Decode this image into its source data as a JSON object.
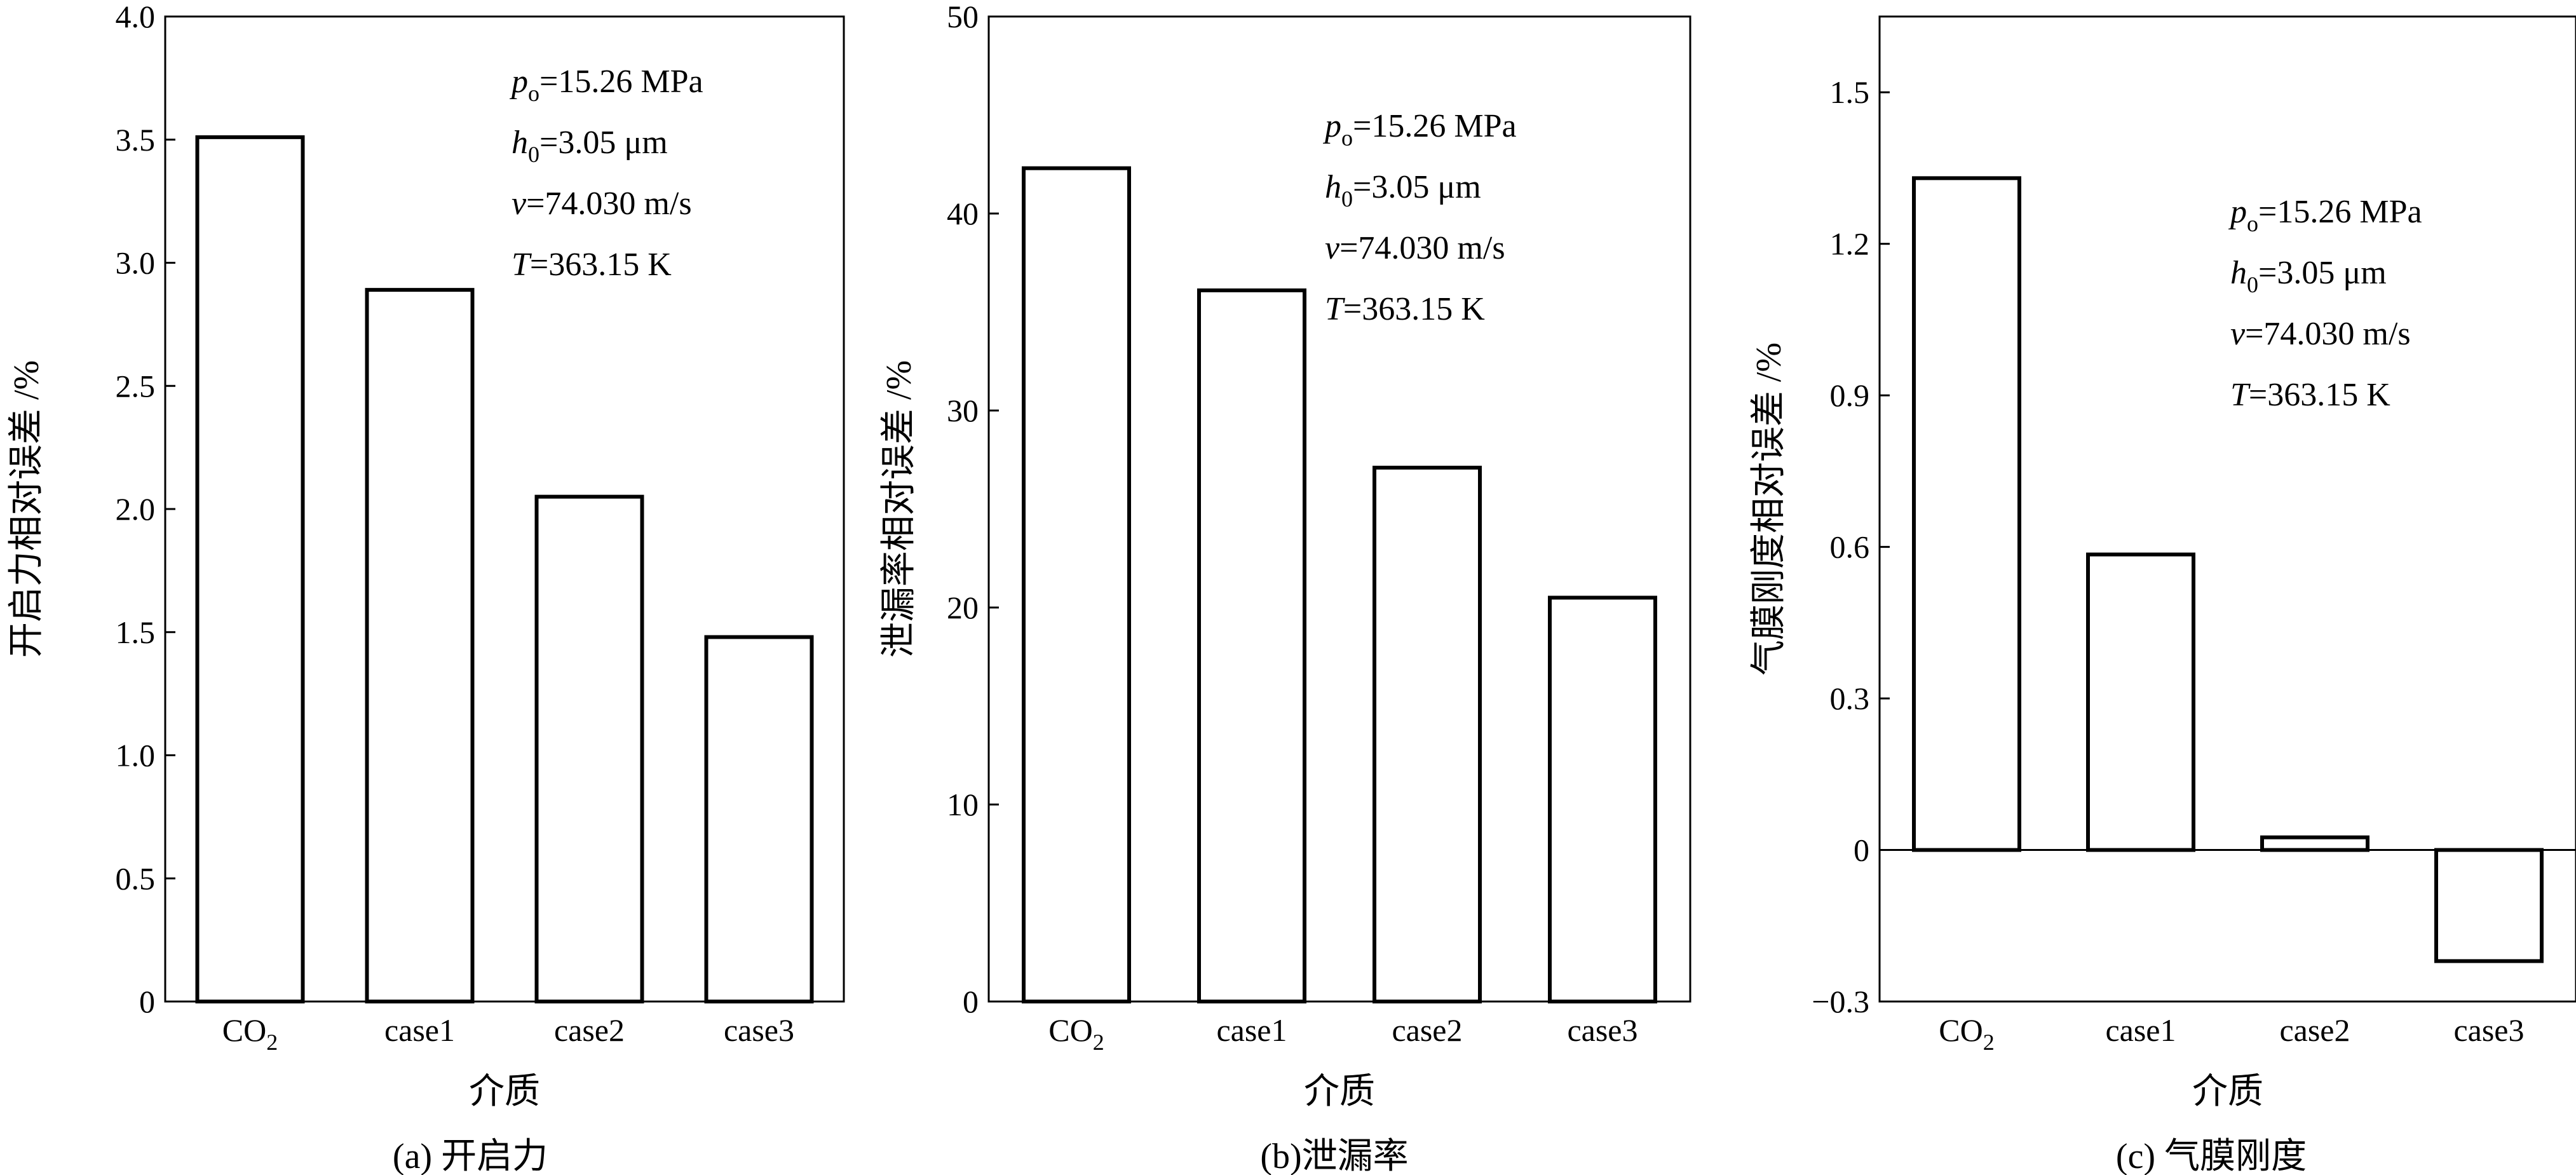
{
  "chart_data": [
    {
      "type": "bar",
      "id": "a",
      "categories": [
        "CO2",
        "case1",
        "case2",
        "case3"
      ],
      "values": [
        3.51,
        2.89,
        2.05,
        1.48
      ],
      "ylim": [
        0,
        4.0
      ],
      "yticks": [
        "0",
        "0.5",
        "1.0",
        "1.5",
        "2.0",
        "2.5",
        "3.0",
        "3.5",
        "4.0"
      ],
      "ytick_values": [
        0,
        0.5,
        1.0,
        1.5,
        2.0,
        2.5,
        3.0,
        3.5,
        4.0
      ],
      "ylabel": "开启力相对误差 /%",
      "xlabel": "介质",
      "caption": "(a) 开启力",
      "params": [
        {
          "sym": "p",
          "sub": "o",
          "rest": "=15.26 MPa"
        },
        {
          "sym": "h",
          "sub": "0",
          "rest": "=3.05 μm"
        },
        {
          "sym": "v",
          "sub": "",
          "rest": "=74.030 m/s"
        },
        {
          "sym": "T",
          "sub": "",
          "rest": "=363.15 K"
        }
      ]
    },
    {
      "type": "bar",
      "id": "b",
      "categories": [
        "CO2",
        "case1",
        "case2",
        "case3"
      ],
      "values": [
        42.3,
        36.1,
        27.1,
        20.5
      ],
      "ylim": [
        0,
        50
      ],
      "yticks": [
        "0",
        "10",
        "20",
        "30",
        "40",
        "50"
      ],
      "ytick_values": [
        0,
        10,
        20,
        30,
        40,
        50
      ],
      "ylabel": "泄漏率相对误差 /%",
      "xlabel": "介质",
      "caption": "(b)泄漏率",
      "params": [
        {
          "sym": "p",
          "sub": "o",
          "rest": "=15.26 MPa"
        },
        {
          "sym": "h",
          "sub": "0",
          "rest": "=3.05 μm"
        },
        {
          "sym": "v",
          "sub": "",
          "rest": "=74.030 m/s"
        },
        {
          "sym": "T",
          "sub": "",
          "rest": "=363.15 K"
        }
      ]
    },
    {
      "type": "bar",
      "id": "c",
      "categories": [
        "CO2",
        "case1",
        "case2",
        "case3"
      ],
      "values": [
        1.33,
        0.585,
        0.025,
        -0.22
      ],
      "ylim": [
        -0.3,
        1.65
      ],
      "yticks": [
        "−0.3",
        "0",
        "0.3",
        "0.6",
        "0.9",
        "1.2",
        "1.5"
      ],
      "ytick_values": [
        -0.3,
        0,
        0.3,
        0.6,
        0.9,
        1.2,
        1.5
      ],
      "ylabel": "气膜刚度相对误差 /%",
      "xlabel": "介质",
      "caption": "(c) 气膜刚度",
      "params": [
        {
          "sym": "p",
          "sub": "o",
          "rest": "=15.26 MPa"
        },
        {
          "sym": "h",
          "sub": "0",
          "rest": "=3.05 μm"
        },
        {
          "sym": "v",
          "sub": "",
          "rest": "=74.030 m/s"
        },
        {
          "sym": "T",
          "sub": "",
          "rest": "=363.15 K"
        }
      ]
    }
  ]
}
